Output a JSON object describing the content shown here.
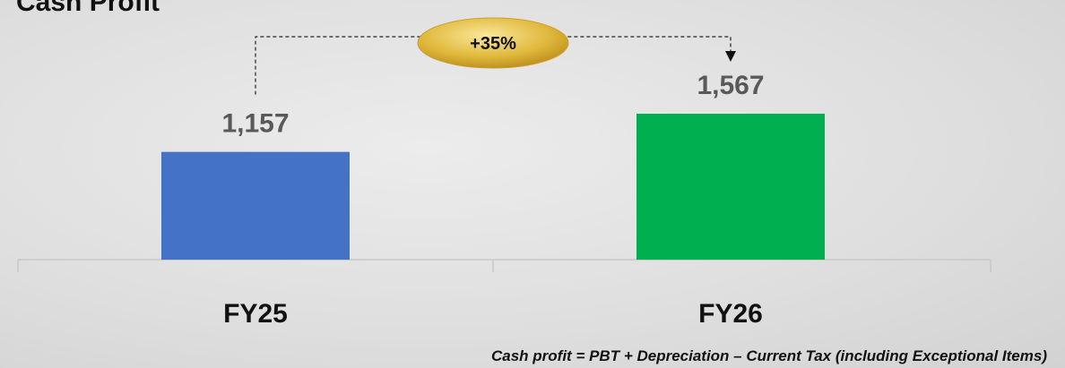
{
  "chart_data": {
    "type": "bar",
    "title": "Cash Profit",
    "categories": [
      "FY25",
      "FY26"
    ],
    "values": [
      1157,
      1567
    ],
    "value_labels": [
      "1,157",
      "1,567"
    ],
    "colors": [
      "#4472c4",
      "#00b050"
    ],
    "annotation": "+35%",
    "footnote": "Cash profit  = PBT +  Depreciation – Current Tax (including Exceptional Items)"
  }
}
